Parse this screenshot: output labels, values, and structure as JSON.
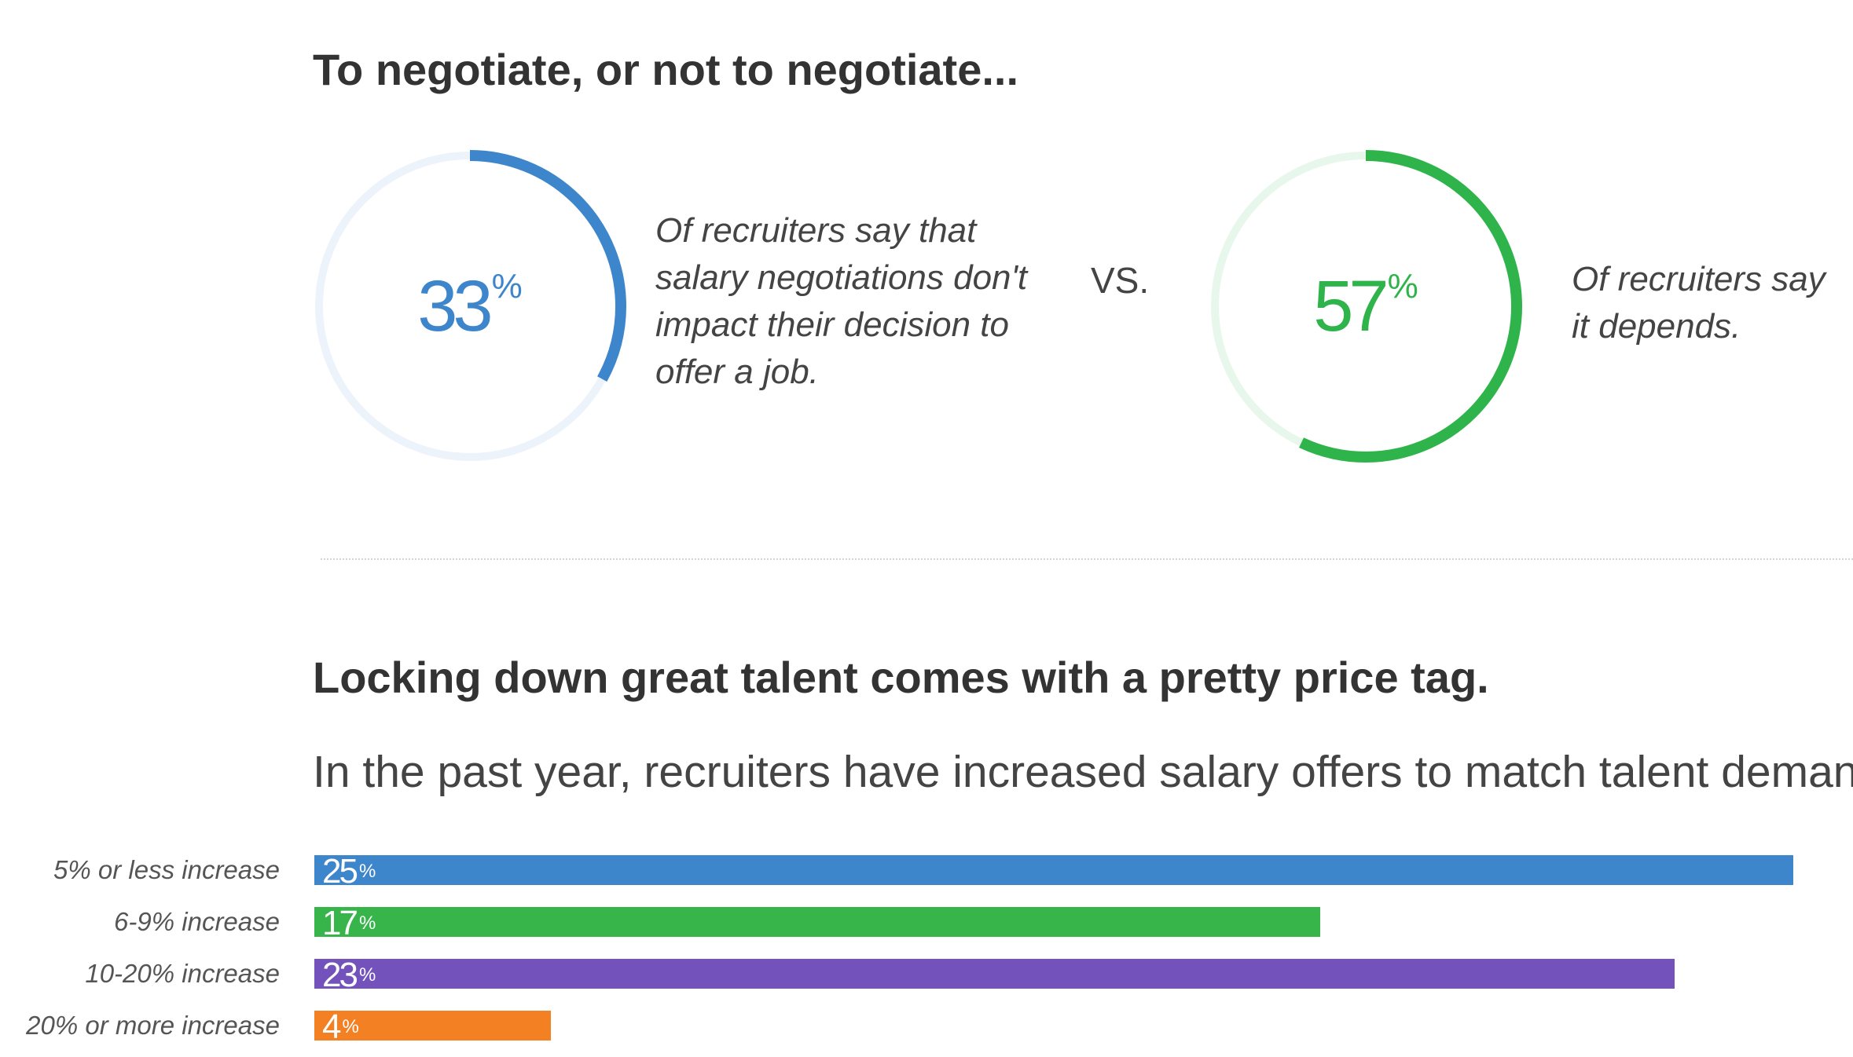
{
  "header": {
    "title_1": "To negotiate, or not to negotiate...",
    "title_2": "Locking down great talent comes with a pretty price tag.",
    "subtitle": "In the past year, recruiters have increased salary offers to match talent demand:"
  },
  "comparison": {
    "vs_label": "VS.",
    "left": {
      "value": "33",
      "sign": "%",
      "fraction": 0.33,
      "color": "#3E86CB",
      "track_color": "#EDF3FB",
      "caption_lines": [
        "Of recruiters say that",
        "salary negotiations don't",
        "impact their decision to",
        "offer a job."
      ]
    },
    "right": {
      "value": "57",
      "sign": "%",
      "fraction": 0.57,
      "color": "#2EB44A",
      "track_color": "#E8F7EB",
      "caption_lines": [
        "Of recruiters say",
        "it depends."
      ]
    }
  },
  "chart_data": {
    "type": "bar",
    "orientation": "horizontal",
    "categories": [
      "5% or less increase",
      "6-9% increase",
      "10-20% increase",
      "20% or more increase"
    ],
    "values": [
      25,
      17,
      23,
      4
    ],
    "value_labels": [
      "25",
      "17",
      "23",
      "4"
    ],
    "unit": "%",
    "colors": [
      "#3E86CB",
      "#38B54A",
      "#7352BC",
      "#F48024"
    ],
    "xlim": [
      0,
      25
    ],
    "grid": false,
    "title": "",
    "xlabel": "",
    "ylabel": ""
  }
}
